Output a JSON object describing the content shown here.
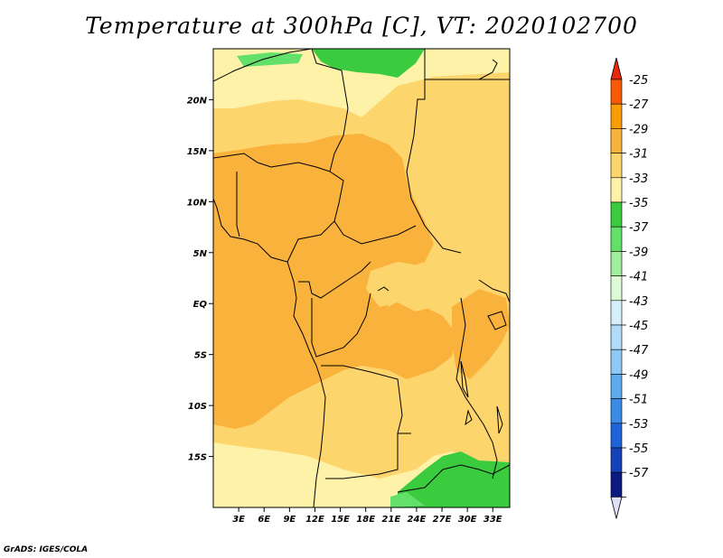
{
  "title": "Temperature at 300hPa [C], VT: 2020102700",
  "credit": "GrADS: IGES/COLA",
  "map": {
    "lon_range": [
      0,
      35
    ],
    "lat_range": [
      -20,
      25
    ],
    "lat_ticks": [
      {
        "value": 20,
        "label": "20N"
      },
      {
        "value": 15,
        "label": "15N"
      },
      {
        "value": 10,
        "label": "10N"
      },
      {
        "value": 5,
        "label": "5N"
      },
      {
        "value": 0,
        "label": "EQ"
      },
      {
        "value": -5,
        "label": "5S"
      },
      {
        "value": -10,
        "label": "10S"
      },
      {
        "value": -15,
        "label": "15S"
      }
    ],
    "lon_ticks": [
      {
        "value": 3,
        "label": "3E"
      },
      {
        "value": 6,
        "label": "6E"
      },
      {
        "value": 9,
        "label": "9E"
      },
      {
        "value": 12,
        "label": "12E"
      },
      {
        "value": 15,
        "label": "15E"
      },
      {
        "value": 18,
        "label": "18E"
      },
      {
        "value": 21,
        "label": "21E"
      },
      {
        "value": 24,
        "label": "24E"
      },
      {
        "value": 27,
        "label": "27E"
      },
      {
        "value": 30,
        "label": "30E"
      },
      {
        "value": 33,
        "label": "33E"
      }
    ]
  },
  "colorbar": {
    "top_color": "#e8290b",
    "bottom_color": "#e0e0f8",
    "levels": [
      {
        "label": "-25",
        "color": "#f95a08"
      },
      {
        "label": "-27",
        "color": "#f99d06"
      },
      {
        "label": "-29",
        "color": "#f9b33c"
      },
      {
        "label": "-31",
        "color": "#fdd56d"
      },
      {
        "label": "-33",
        "color": "#fdf2a8"
      },
      {
        "label": "-35",
        "color": "#3acc3e"
      },
      {
        "label": "-37",
        "color": "#63e06a"
      },
      {
        "label": "-39",
        "color": "#a0ee9c"
      },
      {
        "label": "-41",
        "color": "#ddf9d6"
      },
      {
        "label": "-43",
        "color": "#d5f0fb"
      },
      {
        "label": "-45",
        "color": "#b1dcf7"
      },
      {
        "label": "-47",
        "color": "#8ec8f4"
      },
      {
        "label": "-49",
        "color": "#5fa9ee"
      },
      {
        "label": "-51",
        "color": "#3a8be8"
      },
      {
        "label": "-53",
        "color": "#1f63d8"
      },
      {
        "label": "-55",
        "color": "#1741b8"
      },
      {
        "label": "-57",
        "color": "#0c1a82"
      }
    ]
  },
  "field_colors": {
    "warm": "#f9b33c",
    "mid": "#fdd56d",
    "cool": "#fdf2a8",
    "green": "#3acc3e",
    "green_light": "#63e06a"
  }
}
